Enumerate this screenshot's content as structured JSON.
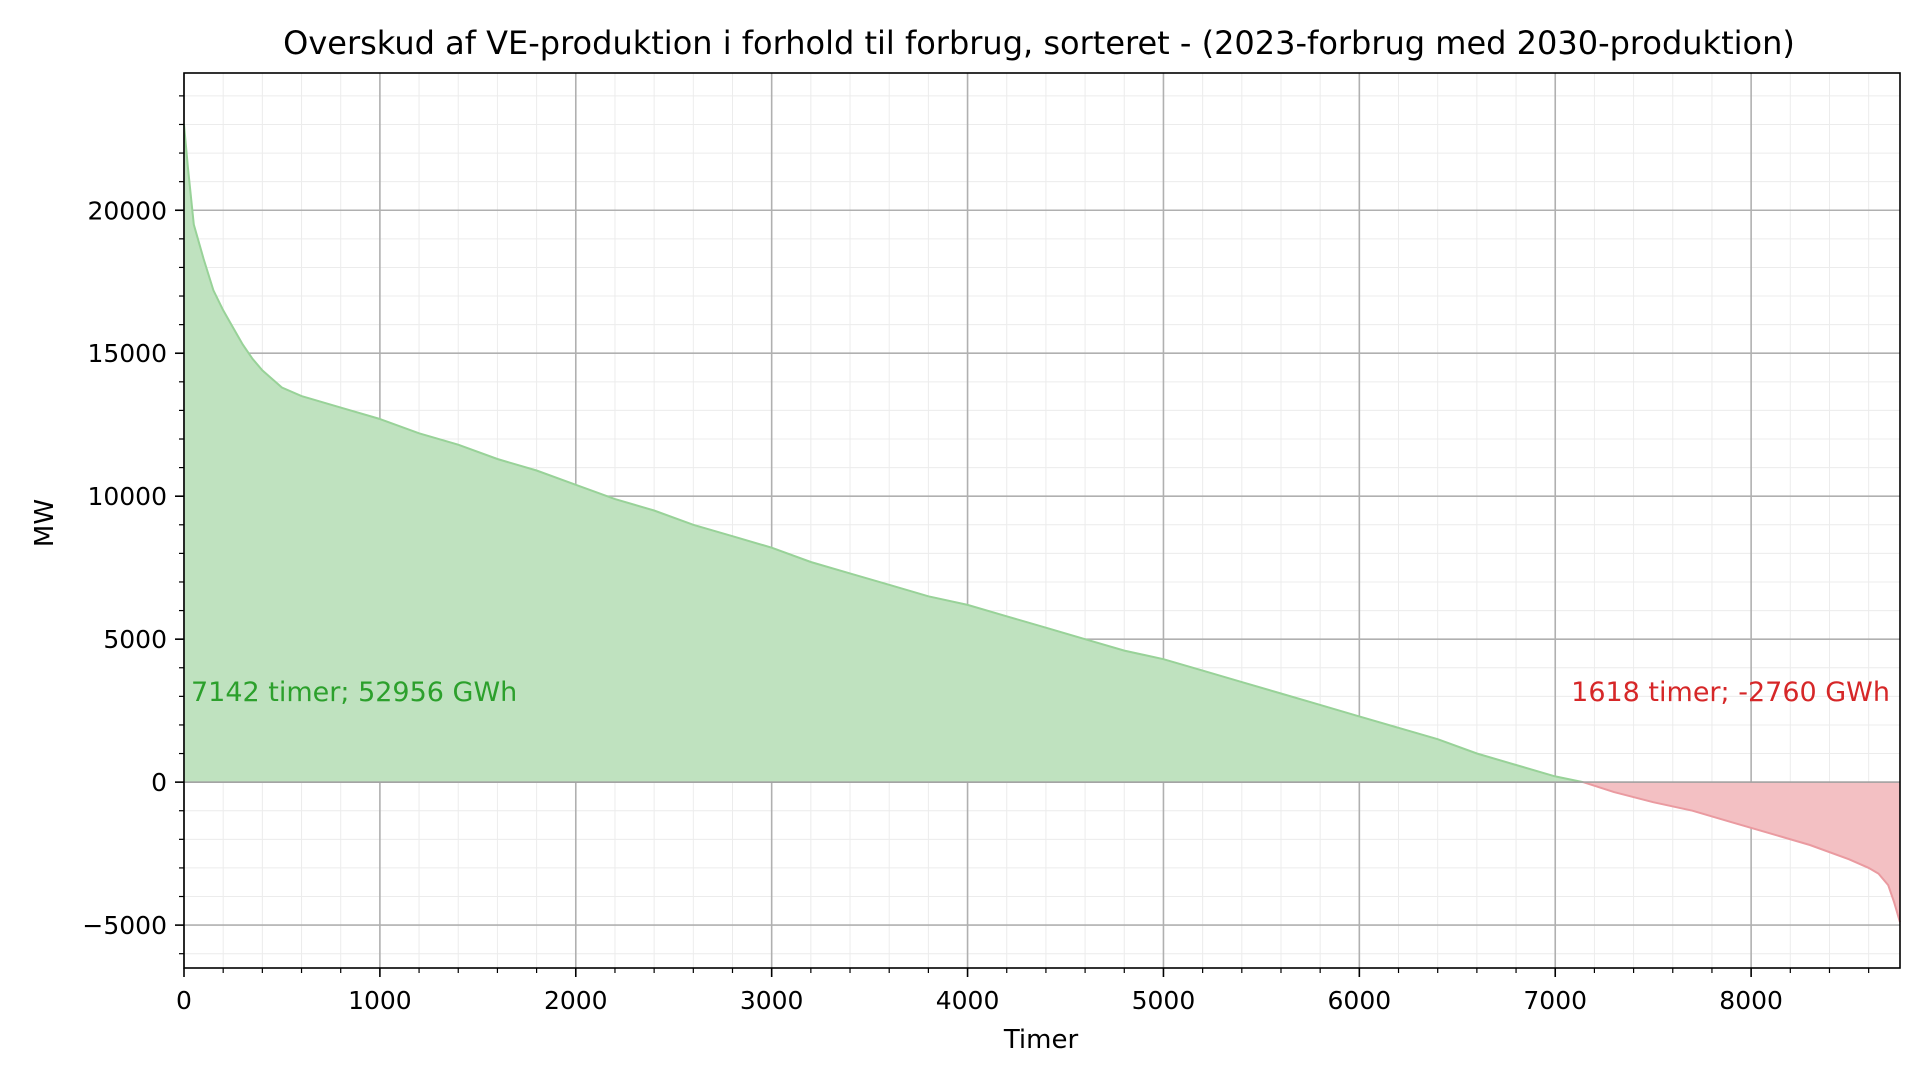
{
  "chart_data": {
    "type": "area",
    "title": "Overskud af VE-produktion i forhold til forbrug, sorteret - (2023-forbrug med 2030-produktion)",
    "xlabel": "Timer",
    "ylabel": "MW",
    "xlim": [
      0,
      8760
    ],
    "ylim": [
      -6500,
      24800
    ],
    "x_ticks": [
      0,
      1000,
      2000,
      3000,
      4000,
      5000,
      6000,
      7000,
      8000
    ],
    "x_tick_labels": [
      "0",
      "1000",
      "2000",
      "3000",
      "4000",
      "5000",
      "6000",
      "7000",
      "8000"
    ],
    "y_ticks": [
      -5000,
      0,
      5000,
      10000,
      15000,
      20000
    ],
    "y_tick_labels": [
      "−5000",
      "0",
      "5000",
      "10000",
      "15000",
      "20000"
    ],
    "grid": "major and minor",
    "colors": {
      "surplus_fill": "#bfe2bf",
      "surplus_line": "#98d298",
      "deficit_fill": "#f3c0c3",
      "deficit_line": "#ea9aa0",
      "surplus_text": "#2ca02c",
      "deficit_text": "#d62728",
      "grid_major": "#b0b0b0",
      "grid_minor": "#ececec"
    },
    "x": [
      0,
      20,
      50,
      100,
      150,
      200,
      250,
      300,
      350,
      400,
      450,
      500,
      600,
      800,
      1000,
      1200,
      1400,
      1600,
      1800,
      2000,
      2200,
      2400,
      2600,
      2800,
      3000,
      3200,
      3400,
      3600,
      3800,
      4000,
      4200,
      4400,
      4600,
      4800,
      5000,
      5200,
      5400,
      5600,
      5800,
      6000,
      6200,
      6400,
      6600,
      6800,
      7000,
      7142,
      7300,
      7500,
      7700,
      7900,
      8100,
      8300,
      8500,
      8600,
      8650,
      8700,
      8730,
      8760
    ],
    "y": [
      23000,
      21500,
      19500,
      18300,
      17200,
      16500,
      15900,
      15300,
      14800,
      14400,
      14100,
      13800,
      13500,
      13100,
      12700,
      12200,
      11800,
      11300,
      10900,
      10400,
      9900,
      9500,
      9000,
      8600,
      8200,
      7700,
      7300,
      6900,
      6500,
      6200,
      5800,
      5400,
      5000,
      4600,
      4300,
      3900,
      3500,
      3100,
      2700,
      2300,
      1900,
      1500,
      1000,
      600,
      200,
      0,
      -350,
      -700,
      -1000,
      -1400,
      -1800,
      -2200,
      -2700,
      -3000,
      -3200,
      -3600,
      -4200,
      -4900
    ],
    "annotations": [
      {
        "text": "7142 timer; 52956 GWh",
        "color": "#2ca02c",
        "anchor": "left"
      },
      {
        "text": "1618 timer; -2760 GWh",
        "color": "#d62728",
        "anchor": "right"
      }
    ]
  }
}
